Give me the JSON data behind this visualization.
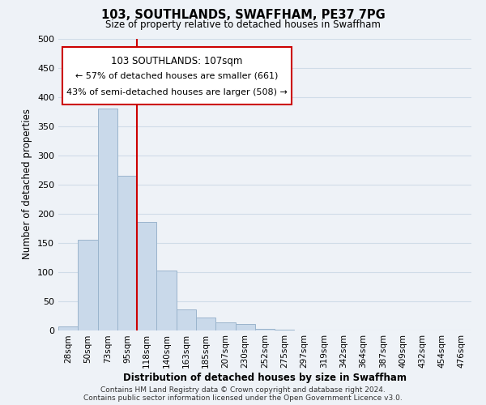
{
  "title": "103, SOUTHLANDS, SWAFFHAM, PE37 7PG",
  "subtitle": "Size of property relative to detached houses in Swaffham",
  "xlabel": "Distribution of detached houses by size in Swaffham",
  "ylabel": "Number of detached properties",
  "bar_labels": [
    "28sqm",
    "50sqm",
    "73sqm",
    "95sqm",
    "118sqm",
    "140sqm",
    "163sqm",
    "185sqm",
    "207sqm",
    "230sqm",
    "252sqm",
    "275sqm",
    "297sqm",
    "319sqm",
    "342sqm",
    "364sqm",
    "387sqm",
    "409sqm",
    "432sqm",
    "454sqm",
    "476sqm"
  ],
  "bar_values": [
    6,
    155,
    380,
    265,
    185,
    102,
    36,
    22,
    13,
    10,
    2,
    1,
    0,
    0,
    0,
    0,
    0,
    0,
    0,
    0,
    0
  ],
  "bar_color": "#c9d9ea",
  "bar_edge_color": "#9ab4cc",
  "vline_x": 3.5,
  "vline_color": "#cc0000",
  "ylim": [
    0,
    500
  ],
  "yticks": [
    0,
    50,
    100,
    150,
    200,
    250,
    300,
    350,
    400,
    450,
    500
  ],
  "annotation_title": "103 SOUTHLANDS: 107sqm",
  "annotation_line1": "← 57% of detached houses are smaller (661)",
  "annotation_line2": "43% of semi-detached houses are larger (508) →",
  "annotation_box_color": "#ffffff",
  "annotation_box_edge": "#cc0000",
  "footer_line1": "Contains HM Land Registry data © Crown copyright and database right 2024.",
  "footer_line2": "Contains public sector information licensed under the Open Government Licence v3.0.",
  "grid_color": "#d0dce8",
  "background_color": "#eef2f7"
}
